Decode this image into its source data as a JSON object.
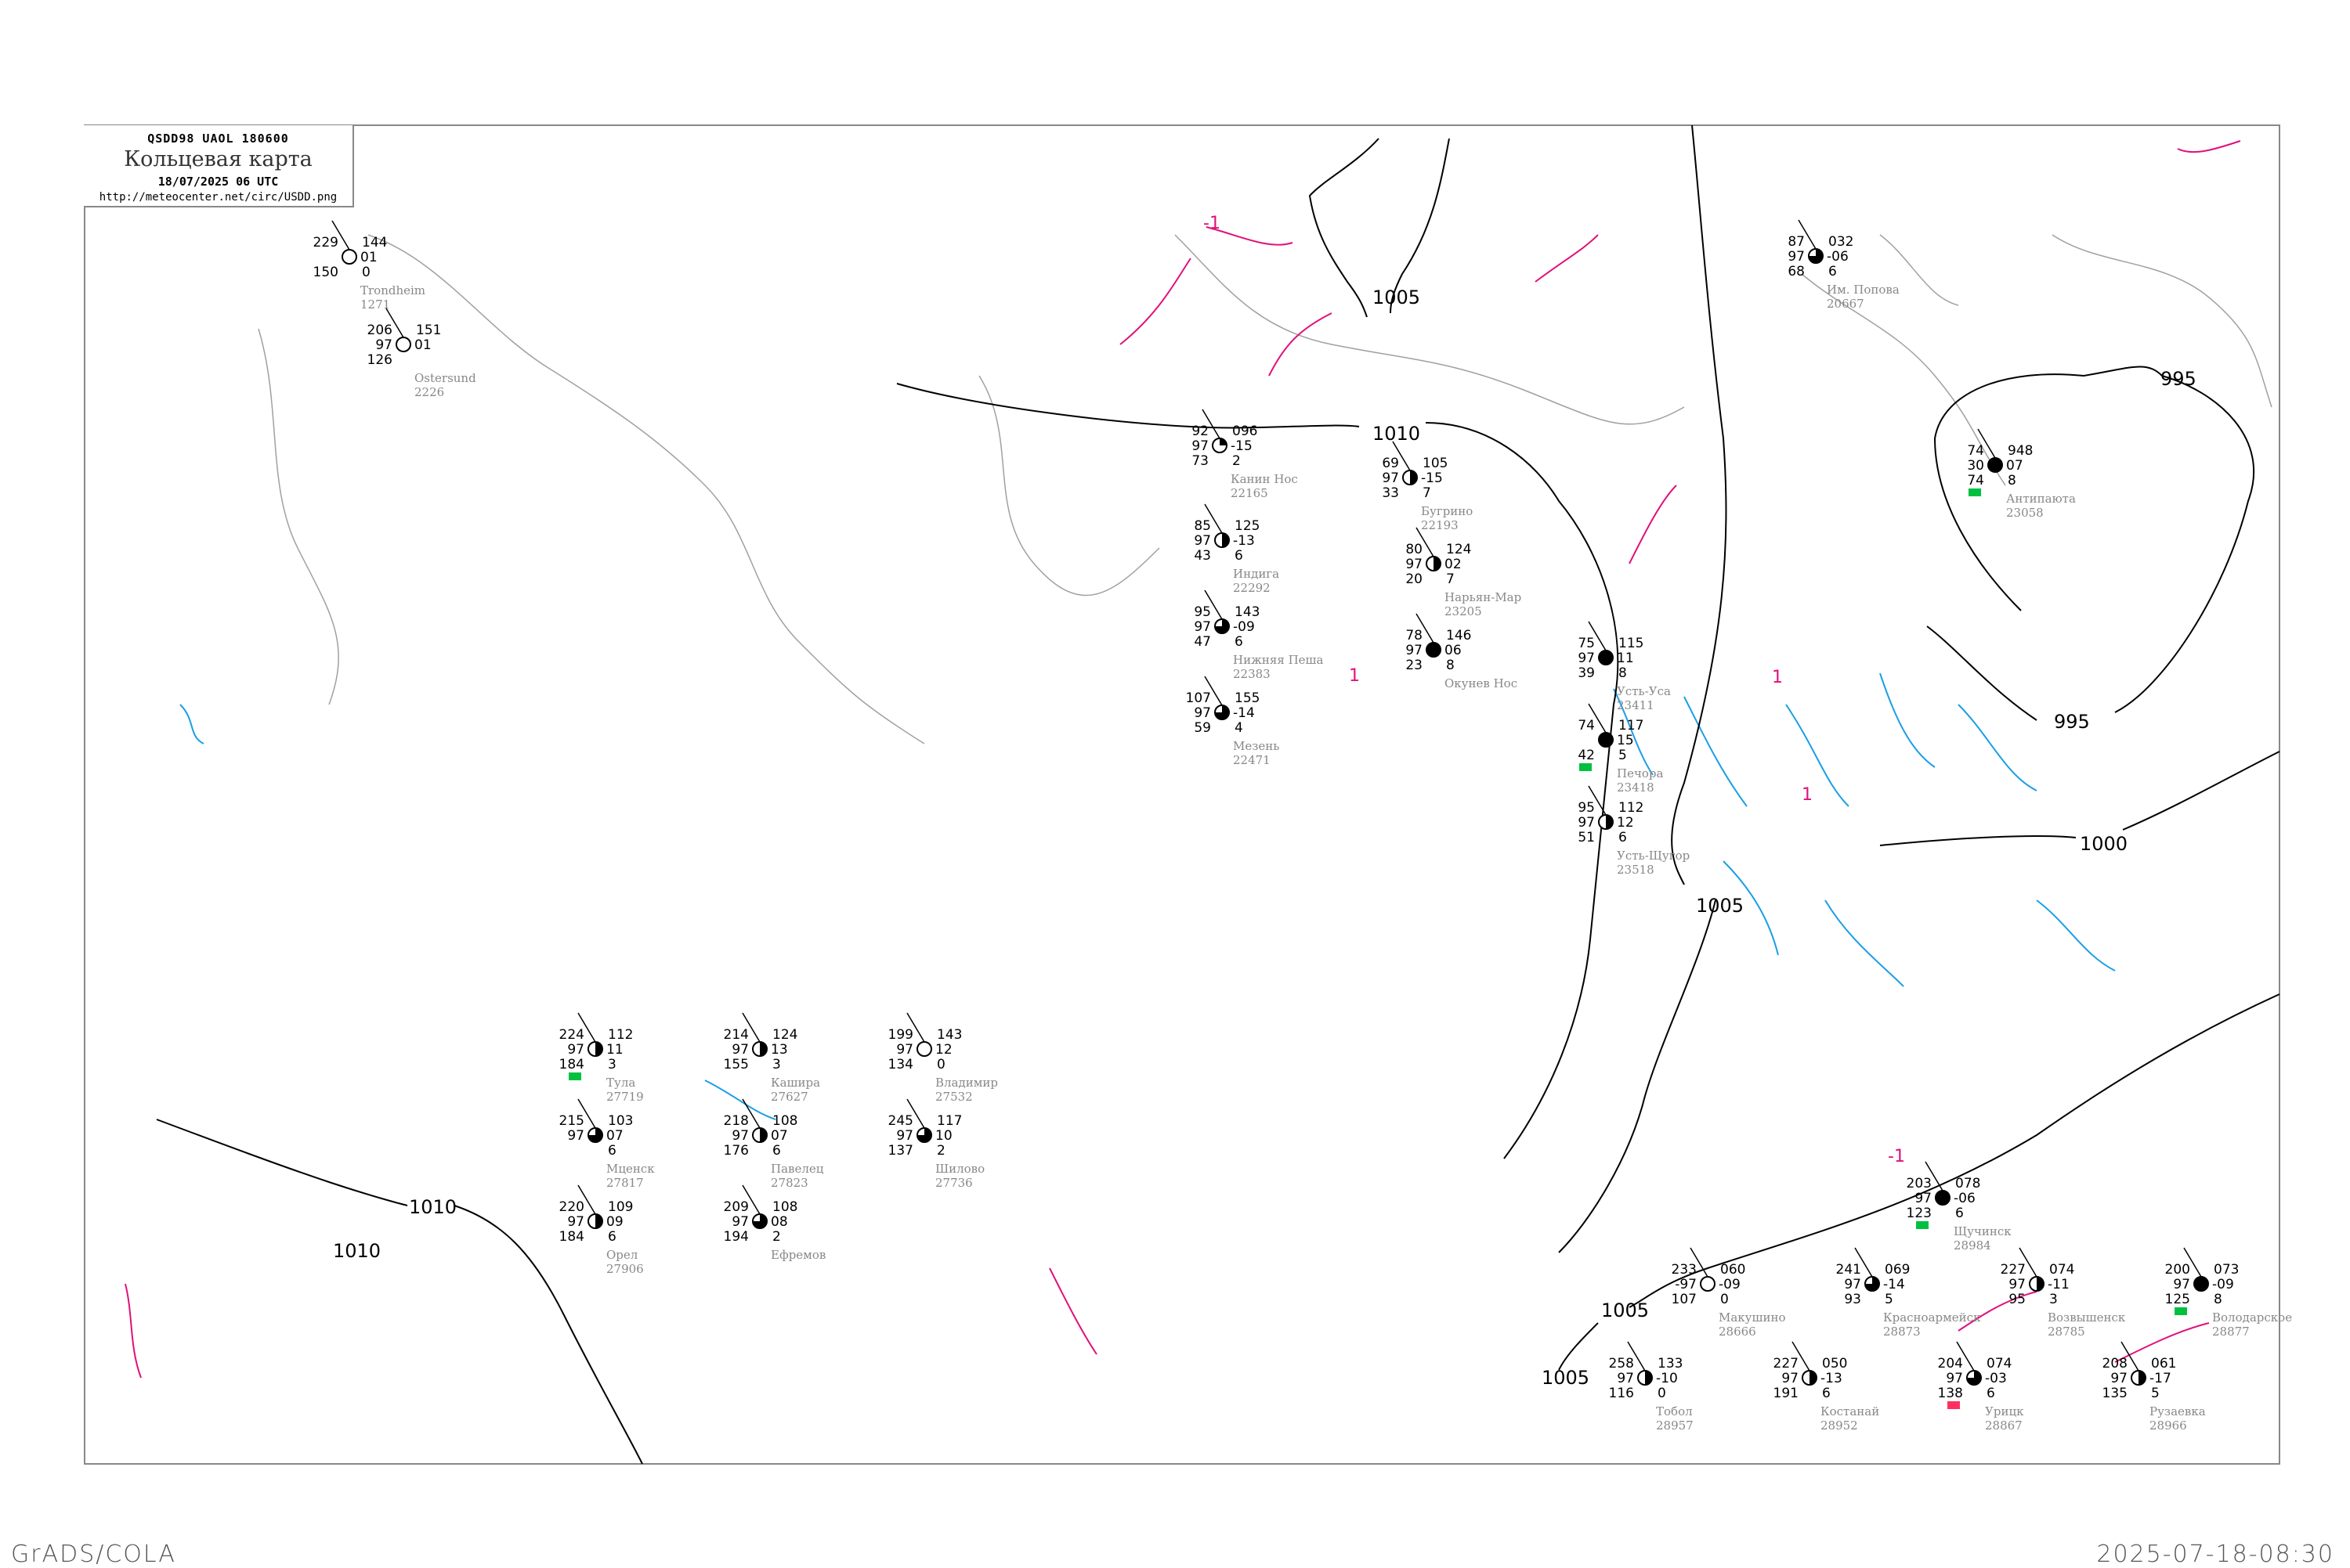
{
  "header": {
    "bulletin": "QSDD98   UAOL   180600",
    "title": "Кольцевая карта",
    "datetime": "18/07/2025 06 UTC",
    "url": "http://meteocenter.net/circ/USDD.png"
  },
  "footer": {
    "left": "GrADS/COLA",
    "right": "2025-07-18-08:30"
  },
  "colors": {
    "isobar": "#000000",
    "isotherm_warm": "#e0107a",
    "isotherm_cold": "#1a9ee6",
    "coastline": "#a0a0a0",
    "station_name": "#888888",
    "precip_green": "#00c040",
    "precip_red": "#ff3060"
  },
  "isobar_labels": [
    "1005",
    "1010",
    "995",
    "995",
    "1000",
    "1005",
    "1005",
    "1005",
    "1010",
    "1010"
  ],
  "isotherm_labels": [
    "-1",
    "-1",
    "1",
    "1",
    "1"
  ],
  "stations": [
    {
      "name": "Им. Попова",
      "id": "20667",
      "tl": "87",
      "ml": "97",
      "bl": "68",
      "tr": "032",
      "mr": "-06",
      "br": "6",
      "cover": 0.75
    },
    {
      "name": "Антипаюта",
      "id": "23058",
      "tl": "74",
      "ml": "30",
      "bl": "74",
      "tr": "948",
      "mr": "07",
      "br": "8",
      "cover": 1,
      "precip": "green"
    },
    {
      "name": "Канин Нос",
      "id": "22165",
      "tl": "92",
      "ml": "97",
      "bl": "73",
      "tr": "096",
      "mr": "-15",
      "br": "2",
      "cover": 0.25
    },
    {
      "name": "Бугрино",
      "id": "22193",
      "tl": "69",
      "ml": "97",
      "bl": "33",
      "tr": "105",
      "mr": "-15",
      "br": "7",
      "cover": 0.5
    },
    {
      "name": "Индига",
      "id": "22292",
      "tl": "85",
      "ml": "97",
      "bl": "43",
      "tr": "125",
      "mr": "-13",
      "br": "6",
      "cover": 0.5
    },
    {
      "name": "Нижняя Пеша",
      "id": "22383",
      "tl": "95",
      "ml": "97",
      "bl": "47",
      "tr": "143",
      "mr": "-09",
      "br": "6",
      "cover": 0.75
    },
    {
      "name": "Нарьян-Мар",
      "id": "23205",
      "tl": "80",
      "ml": "97",
      "bl": "20",
      "tr": "124",
      "mr": "02",
      "br": "7",
      "cover": 0.5
    },
    {
      "name": "Окунев Нос",
      "id": "",
      "tl": "78",
      "ml": "97",
      "bl": "23",
      "tr": "146",
      "mr": "06",
      "br": "8",
      "cover": 1
    },
    {
      "name": "Мезень",
      "id": "22471",
      "tl": "107",
      "ml": "97",
      "bl": "59",
      "tr": "155",
      "mr": "-14",
      "br": "4",
      "cover": 0.75
    },
    {
      "name": "Усть-Уса",
      "id": "23411",
      "tl": "75",
      "ml": "97",
      "bl": "39",
      "tr": "115",
      "mr": "11",
      "br": "8",
      "cover": 1
    },
    {
      "name": "Печора",
      "id": "23418",
      "tl": "74",
      "ml": "",
      "bl": "42",
      "tr": "117",
      "mr": "15",
      "br": "5",
      "cover": 1,
      "precip": "green"
    },
    {
      "name": "Усть-Щугор",
      "id": "23518",
      "tl": "95",
      "ml": "97",
      "bl": "51",
      "tr": "112",
      "mr": "12",
      "br": "6",
      "cover": 0.5
    },
    {
      "name": "Костанай",
      "id": "28952",
      "tl": "227",
      "ml": "97",
      "bl": "191",
      "tr": "050",
      "mr": "-13",
      "br": "6",
      "cover": 0.5
    },
    {
      "name": "Урицк",
      "id": "28867",
      "tl": "204",
      "ml": "97",
      "bl": "138",
      "tr": "074",
      "mr": "-03",
      "br": "6",
      "cover": 0.75,
      "precip": "red"
    },
    {
      "name": "Рузаевка",
      "id": "28966",
      "tl": "208",
      "ml": "97",
      "bl": "135",
      "tr": "061",
      "mr": "-17",
      "br": "5",
      "cover": 0.5
    },
    {
      "name": "Володарское",
      "id": "28877",
      "tl": "200",
      "ml": "97",
      "bl": "125",
      "tr": "073",
      "mr": "-09",
      "br": "8",
      "cover": 1,
      "precip": "green"
    },
    {
      "name": "Щучинск",
      "id": "28984",
      "tl": "203",
      "ml": "97",
      "bl": "123",
      "tr": "078",
      "mr": "-06",
      "br": "6",
      "cover": 1,
      "precip": "green"
    },
    {
      "name": "Красноармейск",
      "id": "28873",
      "tl": "241",
      "ml": "97",
      "bl": "93",
      "tr": "069",
      "mr": "-14",
      "br": "5",
      "cover": 0.75
    },
    {
      "name": "Возвышенск",
      "id": "28785",
      "tl": "227",
      "ml": "97",
      "bl": "95",
      "tr": "074",
      "mr": "-11",
      "br": "3",
      "cover": 0.5
    },
    {
      "name": "Макушино",
      "id": "28666",
      "tl": "233",
      "ml": "-97",
      "bl": "107",
      "tr": "060",
      "mr": "-09",
      "br": "0",
      "cover": 0
    },
    {
      "name": "Тобол",
      "id": "28957",
      "tl": "258",
      "ml": "97",
      "bl": "116",
      "tr": "133",
      "mr": "-10",
      "br": "0",
      "cover": 0.5
    },
    {
      "name": "Тула",
      "id": "27719",
      "tl": "224",
      "ml": "97",
      "bl": "184",
      "tr": "112",
      "mr": "11",
      "br": "3",
      "cover": 0.5,
      "precip": "green"
    },
    {
      "name": "Кашира",
      "id": "27627",
      "tl": "214",
      "ml": "97",
      "bl": "155",
      "tr": "124",
      "mr": "13",
      "br": "3",
      "cover": 0.5
    },
    {
      "name": "Владимир",
      "id": "27532",
      "tl": "199",
      "ml": "97",
      "bl": "134",
      "tr": "143",
      "mr": "12",
      "br": "0",
      "cover": 0
    },
    {
      "name": "Мценск",
      "id": "27817",
      "tl": "215",
      "ml": "97",
      "bl": "",
      "tr": "103",
      "mr": "07",
      "br": "6",
      "cover": 0.75
    },
    {
      "name": "Орел",
      "id": "27906",
      "tl": "220",
      "ml": "97",
      "bl": "184",
      "tr": "109",
      "mr": "09",
      "br": "6",
      "cover": 0.5
    },
    {
      "name": "Павелец",
      "id": "27823",
      "tl": "218",
      "ml": "97",
      "bl": "176",
      "tr": "108",
      "mr": "07",
      "br": "6",
      "cover": 0.5
    },
    {
      "name": "Шилово",
      "id": "27736",
      "tl": "245",
      "ml": "97",
      "bl": "137",
      "tr": "117",
      "mr": "10",
      "br": "2",
      "cover": 0.75
    },
    {
      "name": "Ефремов",
      "id": "",
      "tl": "209",
      "ml": "97",
      "bl": "194",
      "tr": "108",
      "mr": "08",
      "br": "2",
      "cover": 0.75
    },
    {
      "name": "Trondheim",
      "id": "1271",
      "tl": "229",
      "ml": "",
      "bl": "150",
      "tr": "144",
      "mr": "01",
      "br": "0",
      "cover": 0
    },
    {
      "name": "Ostersund",
      "id": "2226",
      "tl": "206",
      "ml": "97",
      "bl": "126",
      "tr": "151",
      "mr": "01",
      "br": "",
      "cover": 0
    }
  ]
}
